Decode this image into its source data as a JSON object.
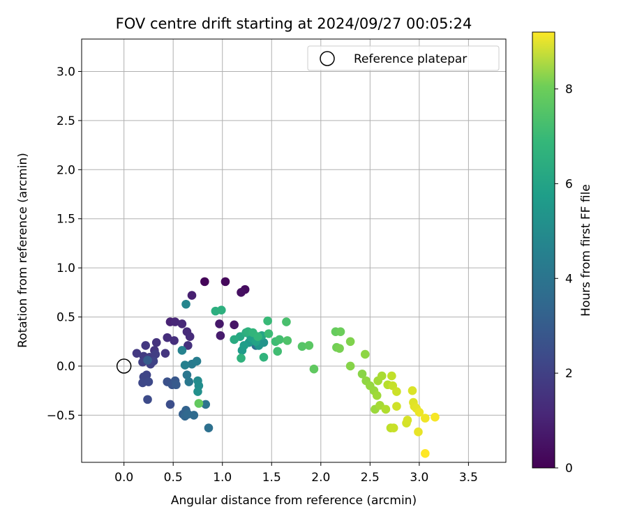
{
  "chart_data": {
    "type": "scatter",
    "title": "FOV centre drift starting at 2024/09/27 00:05:24",
    "xlabel": "Angular distance from reference (arcmin)",
    "ylabel": "Rotation from reference (arcmin)",
    "xlim": [
      -0.43,
      3.88
    ],
    "ylim": [
      -0.98,
      3.33
    ],
    "xticks": [
      0.0,
      0.5,
      1.0,
      1.5,
      2.0,
      2.5,
      3.0,
      3.5
    ],
    "yticks": [
      -0.5,
      0.0,
      0.5,
      1.0,
      1.5,
      2.0,
      2.5,
      3.0
    ],
    "xtick_labels": [
      "0.0",
      "0.5",
      "1.0",
      "1.5",
      "2.0",
      "2.5",
      "3.0",
      "3.5"
    ],
    "ytick_labels": [
      "−0.5",
      "0.0",
      "0.5",
      "1.0",
      "1.5",
      "2.0",
      "2.5",
      "3.0"
    ],
    "grid": true,
    "legend": {
      "position": "top-right",
      "entries": [
        {
          "label": "Reference platepar",
          "marker": "open-circle"
        }
      ]
    },
    "reference_point": {
      "x": 0.0,
      "y": 0.0
    },
    "colorbar": {
      "label": "Hours from first FF file",
      "colormap": "viridis",
      "min": 0,
      "max": 9.2,
      "ticks": [
        0,
        2,
        4,
        6,
        8
      ],
      "tick_labels": [
        "0",
        "2",
        "4",
        "6",
        "8"
      ]
    },
    "series": [
      {
        "points": [
          {
            "x": 0.82,
            "y": 0.86,
            "h": 0.1
          },
          {
            "x": 1.03,
            "y": 0.86,
            "h": 0.2
          },
          {
            "x": 1.23,
            "y": 0.78,
            "h": 0.3
          },
          {
            "x": 1.19,
            "y": 0.75,
            "h": 0.4
          },
          {
            "x": 1.12,
            "y": 0.42,
            "h": 0.5
          },
          {
            "x": 0.97,
            "y": 0.43,
            "h": 0.6
          },
          {
            "x": 0.98,
            "y": 0.31,
            "h": 0.7
          },
          {
            "x": 0.69,
            "y": 0.72,
            "h": 0.8
          },
          {
            "x": 0.47,
            "y": 0.45,
            "h": 0.9
          },
          {
            "x": 0.52,
            "y": 0.45,
            "h": 1.0
          },
          {
            "x": 0.59,
            "y": 0.43,
            "h": 1.05
          },
          {
            "x": 0.64,
            "y": 0.35,
            "h": 1.1
          },
          {
            "x": 0.67,
            "y": 0.3,
            "h": 1.15
          },
          {
            "x": 0.44,
            "y": 0.29,
            "h": 1.2
          },
          {
            "x": 0.51,
            "y": 0.26,
            "h": 1.25
          },
          {
            "x": 0.65,
            "y": 0.21,
            "h": 1.3
          },
          {
            "x": 0.33,
            "y": 0.24,
            "h": 1.35
          },
          {
            "x": 0.31,
            "y": 0.16,
            "h": 1.4
          },
          {
            "x": 0.42,
            "y": 0.13,
            "h": 1.45
          },
          {
            "x": 0.22,
            "y": 0.21,
            "h": 1.5
          },
          {
            "x": 0.13,
            "y": 0.13,
            "h": 1.55
          },
          {
            "x": 0.2,
            "y": 0.1,
            "h": 1.6
          },
          {
            "x": 0.26,
            "y": 0.09,
            "h": 1.65
          },
          {
            "x": 0.32,
            "y": 0.12,
            "h": 1.7
          },
          {
            "x": 0.19,
            "y": 0.04,
            "h": 1.75
          },
          {
            "x": 0.27,
            "y": 0.02,
            "h": 1.8
          },
          {
            "x": 0.3,
            "y": 0.05,
            "h": 1.85
          },
          {
            "x": 0.23,
            "y": -0.09,
            "h": 1.9
          },
          {
            "x": 0.2,
            "y": -0.11,
            "h": 1.95
          },
          {
            "x": 0.19,
            "y": -0.17,
            "h": 2.0
          },
          {
            "x": 0.25,
            "y": -0.16,
            "h": 2.05
          },
          {
            "x": 0.24,
            "y": -0.34,
            "h": 2.1
          },
          {
            "x": 0.47,
            "y": -0.39,
            "h": 2.2
          },
          {
            "x": 0.44,
            "y": -0.16,
            "h": 2.3
          },
          {
            "x": 0.49,
            "y": -0.19,
            "h": 2.4
          },
          {
            "x": 0.52,
            "y": -0.15,
            "h": 2.5
          },
          {
            "x": 0.53,
            "y": -0.19,
            "h": 2.6
          },
          {
            "x": 0.24,
            "y": 0.06,
            "h": 2.7
          },
          {
            "x": 0.6,
            "y": -0.49,
            "h": 2.8
          },
          {
            "x": 0.63,
            "y": -0.45,
            "h": 2.9
          },
          {
            "x": 0.62,
            "y": -0.51,
            "h": 3.0
          },
          {
            "x": 0.65,
            "y": -0.49,
            "h": 3.1
          },
          {
            "x": 0.71,
            "y": -0.5,
            "h": 3.2
          },
          {
            "x": 1.34,
            "y": 0.21,
            "h": 3.3
          },
          {
            "x": 0.86,
            "y": -0.63,
            "h": 3.4
          },
          {
            "x": 0.83,
            "y": -0.39,
            "h": 3.5
          },
          {
            "x": 0.64,
            "y": -0.09,
            "h": 3.6
          },
          {
            "x": 0.66,
            "y": -0.16,
            "h": 3.7
          },
          {
            "x": 0.69,
            "y": 0.02,
            "h": 3.8
          },
          {
            "x": 0.74,
            "y": 0.05,
            "h": 3.9
          },
          {
            "x": 0.62,
            "y": 0.01,
            "h": 4.0
          },
          {
            "x": 0.59,
            "y": 0.16,
            "h": 4.1
          },
          {
            "x": 0.63,
            "y": 0.63,
            "h": 4.2
          },
          {
            "x": 0.75,
            "y": -0.15,
            "h": 4.4
          },
          {
            "x": 0.76,
            "y": -0.2,
            "h": 4.5
          },
          {
            "x": 0.75,
            "y": -0.26,
            "h": 4.6
          },
          {
            "x": 1.42,
            "y": 0.24,
            "h": 4.7
          },
          {
            "x": 1.37,
            "y": 0.21,
            "h": 4.8
          },
          {
            "x": 1.27,
            "y": 0.24,
            "h": 4.9
          },
          {
            "x": 1.2,
            "y": 0.16,
            "h": 5.0
          },
          {
            "x": 1.22,
            "y": 0.21,
            "h": 5.1
          },
          {
            "x": 1.29,
            "y": 0.29,
            "h": 5.2
          },
          {
            "x": 1.34,
            "y": 0.25,
            "h": 5.3
          },
          {
            "x": 1.4,
            "y": 0.31,
            "h": 5.4
          },
          {
            "x": 1.18,
            "y": 0.3,
            "h": 5.5
          },
          {
            "x": 1.12,
            "y": 0.27,
            "h": 5.6
          },
          {
            "x": 1.24,
            "y": 0.34,
            "h": 5.7
          },
          {
            "x": 0.93,
            "y": 0.56,
            "h": 5.75
          },
          {
            "x": 0.99,
            "y": 0.57,
            "h": 5.8
          },
          {
            "x": 1.26,
            "y": 0.35,
            "h": 5.85
          },
          {
            "x": 1.19,
            "y": 0.08,
            "h": 5.9
          },
          {
            "x": 1.42,
            "y": 0.09,
            "h": 5.95
          },
          {
            "x": 1.31,
            "y": 0.34,
            "h": 6.0
          },
          {
            "x": 1.36,
            "y": 0.3,
            "h": 6.1
          },
          {
            "x": 1.46,
            "y": 0.46,
            "h": 6.2
          },
          {
            "x": 1.47,
            "y": 0.33,
            "h": 6.25
          },
          {
            "x": 1.54,
            "y": 0.25,
            "h": 6.3
          },
          {
            "x": 1.56,
            "y": 0.15,
            "h": 6.35
          },
          {
            "x": 1.58,
            "y": 0.27,
            "h": 6.4
          },
          {
            "x": 1.65,
            "y": 0.45,
            "h": 6.5
          },
          {
            "x": 1.66,
            "y": 0.26,
            "h": 6.6
          },
          {
            "x": 1.81,
            "y": 0.2,
            "h": 6.7
          },
          {
            "x": 1.88,
            "y": 0.21,
            "h": 6.8
          },
          {
            "x": 1.93,
            "y": -0.03,
            "h": 6.9
          },
          {
            "x": 0.76,
            "y": -0.38,
            "h": 6.95
          },
          {
            "x": 2.15,
            "y": 0.35,
            "h": 7.0
          },
          {
            "x": 2.2,
            "y": 0.35,
            "h": 7.1
          },
          {
            "x": 2.16,
            "y": 0.19,
            "h": 7.2
          },
          {
            "x": 2.19,
            "y": 0.18,
            "h": 7.3
          },
          {
            "x": 2.3,
            "y": 0.25,
            "h": 7.4
          },
          {
            "x": 2.3,
            "y": 0.0,
            "h": 7.5
          },
          {
            "x": 2.42,
            "y": -0.08,
            "h": 7.55
          },
          {
            "x": 2.45,
            "y": 0.12,
            "h": 7.6
          },
          {
            "x": 2.46,
            "y": -0.15,
            "h": 7.65
          },
          {
            "x": 2.5,
            "y": -0.2,
            "h": 7.7
          },
          {
            "x": 2.54,
            "y": -0.25,
            "h": 7.75
          },
          {
            "x": 2.55,
            "y": -0.44,
            "h": 7.8
          },
          {
            "x": 2.57,
            "y": -0.3,
            "h": 7.85
          },
          {
            "x": 2.58,
            "y": -0.15,
            "h": 7.9
          },
          {
            "x": 2.6,
            "y": -0.4,
            "h": 7.95
          },
          {
            "x": 2.62,
            "y": -0.1,
            "h": 8.0
          },
          {
            "x": 2.66,
            "y": -0.44,
            "h": 8.1
          },
          {
            "x": 2.68,
            "y": -0.19,
            "h": 8.2
          },
          {
            "x": 2.71,
            "y": -0.63,
            "h": 8.3
          },
          {
            "x": 2.72,
            "y": -0.1,
            "h": 8.35
          },
          {
            "x": 2.73,
            "y": -0.2,
            "h": 8.4
          },
          {
            "x": 2.74,
            "y": -0.63,
            "h": 8.45
          },
          {
            "x": 2.77,
            "y": -0.26,
            "h": 8.5
          },
          {
            "x": 2.77,
            "y": -0.41,
            "h": 8.55
          },
          {
            "x": 2.87,
            "y": -0.58,
            "h": 8.6
          },
          {
            "x": 2.88,
            "y": -0.55,
            "h": 8.65
          },
          {
            "x": 2.93,
            "y": -0.25,
            "h": 8.7
          },
          {
            "x": 2.94,
            "y": -0.37,
            "h": 8.75
          },
          {
            "x": 2.95,
            "y": -0.41,
            "h": 8.8
          },
          {
            "x": 2.97,
            "y": -0.43,
            "h": 8.85
          },
          {
            "x": 2.99,
            "y": -0.67,
            "h": 8.9
          },
          {
            "x": 3.0,
            "y": -0.47,
            "h": 8.95
          },
          {
            "x": 3.06,
            "y": -0.53,
            "h": 9.0
          },
          {
            "x": 3.16,
            "y": -0.52,
            "h": 9.1
          },
          {
            "x": 3.06,
            "y": -0.89,
            "h": 9.2
          }
        ]
      }
    ]
  }
}
